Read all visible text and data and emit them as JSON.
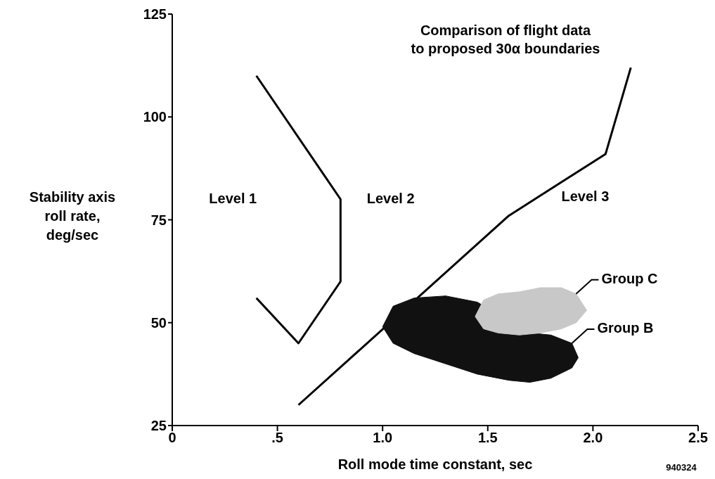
{
  "chart_data": {
    "type": "line",
    "title": "Comparison of flight data\nto proposed 30α boundaries",
    "xlabel": "Roll mode time constant, sec",
    "ylabel": "Stability axis\nroll rate,\ndeg/sec",
    "xlim": [
      0,
      2.5
    ],
    "xticks": [
      0,
      {
        "value": 0.5,
        "label": ".5"
      },
      {
        "value": 1,
        "label": "1.0"
      },
      {
        "value": 1.5,
        "label": "1.5"
      },
      {
        "value": 2,
        "label": "2.0"
      },
      2.5
    ],
    "ylim": [
      25,
      125
    ],
    "yticks": [
      25,
      50,
      75,
      100,
      125
    ],
    "grid": false,
    "legend": false,
    "marker": "none",
    "line_style": "solid",
    "series": [
      {
        "color": "#000000",
        "x": [
          0.4,
          0.8,
          0.8,
          0.6,
          0.4
        ],
        "values": [
          110,
          80,
          60,
          45,
          56
        ]
      },
      {
        "color": "#000000",
        "x": [
          0.6,
          1.6,
          2.06,
          2.18
        ],
        "values": [
          30,
          76,
          91,
          112
        ]
      },
      {
        "type": "area",
        "name": "Group B",
        "color": "#111111",
        "x": [
          1.0,
          1.05,
          1.15,
          1.3,
          1.45,
          1.6,
          1.7,
          1.8,
          1.9,
          1.93,
          1.9,
          1.8,
          1.7,
          1.6,
          1.45,
          1.3,
          1.15,
          1.05
        ],
        "values": [
          49,
          54,
          56,
          56.5,
          55,
          null,
          47.5,
          47,
          45,
          41.5,
          39,
          36.5,
          35.5,
          36,
          37.5,
          40,
          42.5,
          45
        ]
      },
      {
        "type": "area",
        "name": "Group C",
        "color": "#c8c8c8",
        "x": [
          1.44,
          1.48,
          1.55,
          1.65,
          1.75,
          1.85,
          1.92,
          1.97,
          1.92,
          1.85,
          1.75,
          1.65,
          1.55,
          1.48
        ],
        "values": [
          51.5,
          55.5,
          57,
          57.5,
          58.5,
          58.5,
          57,
          53,
          50,
          48.5,
          47.5,
          47,
          47.5,
          48.5
        ]
      }
    ],
    "annotations": [
      "Level 1",
      "Level 2",
      "Level 3",
      "940324"
    ]
  }
}
